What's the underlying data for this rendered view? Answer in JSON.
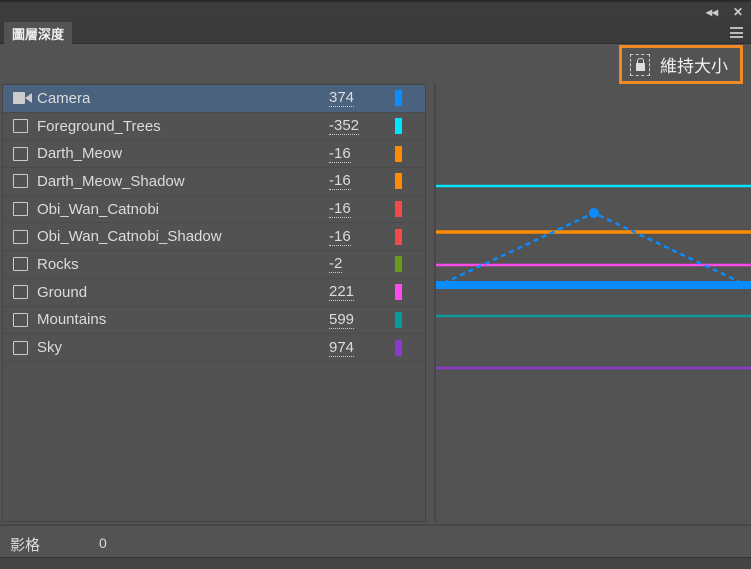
{
  "panel": {
    "tab_title": "圖層深度",
    "collapse_icon": "double-chevron-left-icon",
    "close_icon": "close-icon"
  },
  "toolbar": {
    "lock_label": "維持大小",
    "highlight_color": "#f08a24"
  },
  "layers": [
    {
      "name": "Camera",
      "depth": "374",
      "color": "#0a8cff",
      "icon": "camera-icon",
      "selected": true
    },
    {
      "name": "Foreground_Trees",
      "depth": "-352",
      "color": "#00e5ff",
      "icon": "layer-icon"
    },
    {
      "name": "Darth_Meow",
      "depth": "-16",
      "color": "#ff8c00",
      "icon": "layer-icon"
    },
    {
      "name": "Darth_Meow_Shadow",
      "depth": "-16",
      "color": "#ff8c00",
      "icon": "layer-icon"
    },
    {
      "name": "Obi_Wan_Catnobi",
      "depth": "-16",
      "color": "#f04a4a",
      "icon": "layer-icon"
    },
    {
      "name": "Obi_Wan_Catnobi_Shadow",
      "depth": "-16",
      "color": "#f04a4a",
      "icon": "layer-icon"
    },
    {
      "name": "Rocks",
      "depth": "-2",
      "color": "#6a9a1a",
      "icon": "layer-icon"
    },
    {
      "name": "Ground",
      "depth": "221",
      "color": "#ff4af0",
      "icon": "layer-icon"
    },
    {
      "name": "Mountains",
      "depth": "599",
      "color": "#0a9a9a",
      "icon": "layer-icon"
    },
    {
      "name": "Sky",
      "depth": "974",
      "color": "#8a3acc",
      "icon": "layer-icon"
    }
  ],
  "footer": {
    "frame_label": "影格",
    "frame_value": "0"
  }
}
